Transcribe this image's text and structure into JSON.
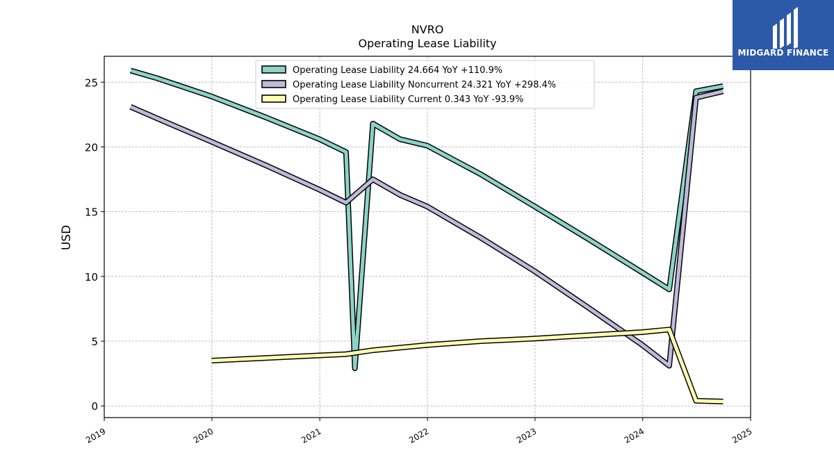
{
  "brand": {
    "name": "MIDGARD FINANCE",
    "bg": "#2d5aa8"
  },
  "chart_data": {
    "type": "line",
    "title": "NVRO",
    "subtitle": "Operating Lease Liability",
    "ylabel": "USD",
    "xlabel": "",
    "xlim": [
      "2019-01-01",
      "2025-01-01"
    ],
    "ylim": [
      -0.9,
      27.0
    ],
    "x_ticks": [
      "2019",
      "2020",
      "2021",
      "2022",
      "2023",
      "2024",
      "2025"
    ],
    "y_ticks": [
      0,
      5,
      10,
      15,
      20,
      25
    ],
    "grid": true,
    "legend_position": "top-center",
    "series": [
      {
        "name": "Operating Lease Liability",
        "legend_label": "Operating Lease Liability  24.664 YoY +110.9%",
        "color": "#8dd3c7",
        "points": [
          [
            "2019-03-31",
            25.9
          ],
          [
            "2019-06-30",
            25.3
          ],
          [
            "2019-09-30",
            24.6
          ],
          [
            "2019-12-31",
            23.9
          ],
          [
            "2020-06-30",
            22.3
          ],
          [
            "2020-12-31",
            20.6
          ],
          [
            "2021-03-31",
            19.6
          ],
          [
            "2021-04-30",
            2.9
          ],
          [
            "2021-06-30",
            21.8
          ],
          [
            "2021-09-30",
            20.6
          ],
          [
            "2021-12-31",
            20.1
          ],
          [
            "2022-06-30",
            17.9
          ],
          [
            "2022-12-31",
            15.4
          ],
          [
            "2023-06-30",
            12.9
          ],
          [
            "2023-12-31",
            10.3
          ],
          [
            "2024-03-31",
            9.0
          ],
          [
            "2024-06-30",
            24.3
          ],
          [
            "2024-09-30",
            24.7
          ]
        ]
      },
      {
        "name": "Operating Lease Liability Noncurrent",
        "legend_label": "Operating Lease Liability Noncurrent  24.321 YoY +298.4%",
        "color": "#bebada",
        "points": [
          [
            "2019-03-31",
            23.1
          ],
          [
            "2019-06-30",
            22.2
          ],
          [
            "2019-09-30",
            21.3
          ],
          [
            "2019-12-31",
            20.4
          ],
          [
            "2020-06-30",
            18.6
          ],
          [
            "2020-12-31",
            16.7
          ],
          [
            "2021-03-31",
            15.7
          ],
          [
            "2021-06-30",
            17.5
          ],
          [
            "2021-09-30",
            16.3
          ],
          [
            "2021-12-31",
            15.4
          ],
          [
            "2022-06-30",
            13.0
          ],
          [
            "2022-12-31",
            10.4
          ],
          [
            "2023-06-30",
            7.6
          ],
          [
            "2023-12-31",
            4.7
          ],
          [
            "2024-03-31",
            3.1
          ],
          [
            "2024-06-30",
            23.8
          ],
          [
            "2024-09-30",
            24.3
          ]
        ]
      },
      {
        "name": "Operating Lease Liability Current",
        "legend_label": "Operating Lease Liability Current  0.343 YoY -93.9%",
        "color": "#ffffb3",
        "points": [
          [
            "2019-12-31",
            3.5
          ],
          [
            "2020-06-30",
            3.7
          ],
          [
            "2020-12-31",
            3.9
          ],
          [
            "2021-03-31",
            4.0
          ],
          [
            "2021-06-30",
            4.3
          ],
          [
            "2021-09-30",
            4.5
          ],
          [
            "2021-12-31",
            4.7
          ],
          [
            "2022-06-30",
            5.0
          ],
          [
            "2022-12-31",
            5.2
          ],
          [
            "2023-06-30",
            5.45
          ],
          [
            "2023-12-31",
            5.7
          ],
          [
            "2024-03-31",
            5.9
          ],
          [
            "2024-06-30",
            0.4
          ],
          [
            "2024-09-30",
            0.34
          ]
        ]
      }
    ]
  }
}
